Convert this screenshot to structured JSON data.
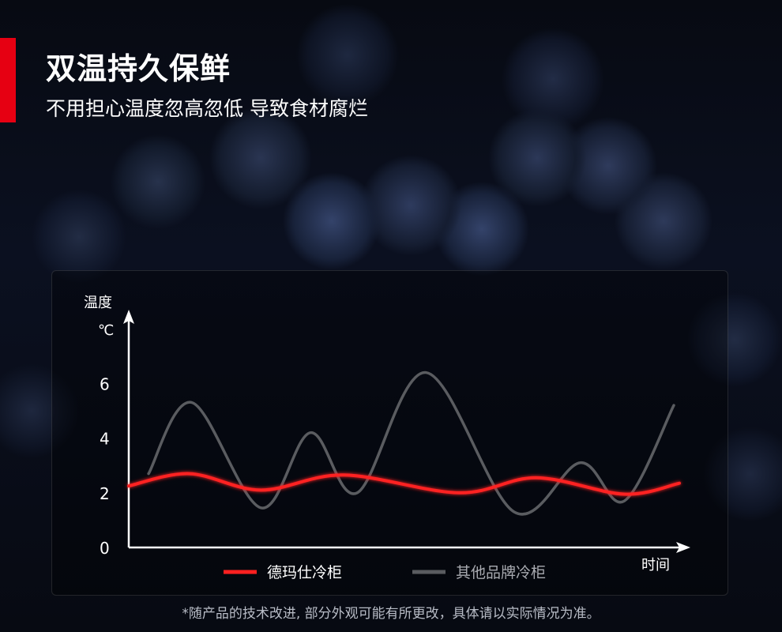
{
  "header": {
    "title": "双温持久保鲜",
    "subtitle": "不用担心温度忽高忽低 导致食材腐烂"
  },
  "colors": {
    "accent": "#e60012",
    "demas": "#ff2020",
    "others": "#5a5c60"
  },
  "chart_data": {
    "type": "line",
    "ylabel": "温度",
    "yunit": "℃",
    "xlabel": "时间",
    "ylim": [
      0,
      7
    ],
    "xlim": [
      0,
      100
    ],
    "yticks": [
      "0",
      "2",
      "4",
      "6"
    ],
    "grid": false,
    "legend_placement": "bottom",
    "series": [
      {
        "name": "德玛仕冷柜",
        "color": "#ff2020",
        "x": [
          0,
          11,
          24,
          39,
          60,
          74,
          90,
          100
        ],
        "y": [
          2.25,
          2.7,
          2.1,
          2.65,
          2.0,
          2.55,
          1.95,
          2.35
        ]
      },
      {
        "name": "其他品牌冷柜",
        "color": "#5a5c60",
        "x": [
          3.6,
          11.5,
          24,
          33,
          41.5,
          54,
          70,
          82,
          90,
          99
        ],
        "y": [
          2.7,
          5.3,
          1.45,
          4.2,
          2.0,
          6.4,
          1.3,
          3.1,
          1.7,
          5.2
        ]
      }
    ]
  },
  "footnote": "*随产品的技术改进, 部分外观可能有所更改，具体请以实际情况为准。"
}
